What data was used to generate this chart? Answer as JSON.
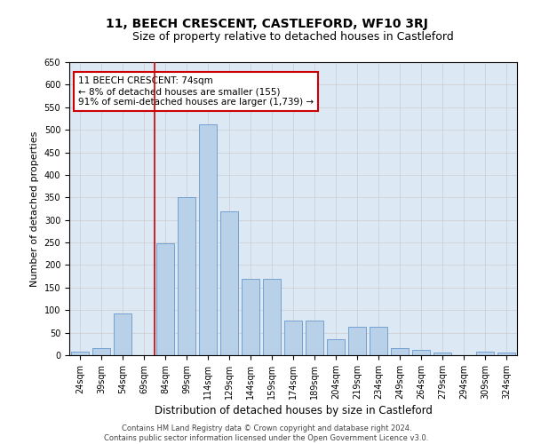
{
  "title": "11, BEECH CRESCENT, CASTLEFORD, WF10 3RJ",
  "subtitle": "Size of property relative to detached houses in Castleford",
  "xlabel": "Distribution of detached houses by size in Castleford",
  "ylabel": "Number of detached properties",
  "bar_labels": [
    "24sqm",
    "39sqm",
    "54sqm",
    "69sqm",
    "84sqm",
    "99sqm",
    "114sqm",
    "129sqm",
    "144sqm",
    "159sqm",
    "174sqm",
    "189sqm",
    "204sqm",
    "219sqm",
    "234sqm",
    "249sqm",
    "264sqm",
    "279sqm",
    "294sqm",
    "309sqm",
    "324sqm"
  ],
  "bar_values": [
    7,
    15,
    93,
    0,
    248,
    350,
    512,
    320,
    170,
    170,
    76,
    76,
    35,
    63,
    63,
    15,
    12,
    5,
    0,
    8,
    5
  ],
  "bar_color": "#b8d0e8",
  "bar_edge_color": "#6699cc",
  "annotation_box_text": "11 BEECH CRESCENT: 74sqm\n← 8% of detached houses are smaller (155)\n91% of semi-detached houses are larger (1,739) →",
  "annotation_box_color": "#ffffff",
  "annotation_box_edge_color": "#cc0000",
  "annotation_text_color": "#000000",
  "vline_color": "#cc0000",
  "ylim": [
    0,
    650
  ],
  "yticks": [
    0,
    50,
    100,
    150,
    200,
    250,
    300,
    350,
    400,
    450,
    500,
    550,
    600,
    650
  ],
  "grid_color": "#cccccc",
  "bg_color": "#dde8f5",
  "footer_line1": "Contains HM Land Registry data © Crown copyright and database right 2024.",
  "footer_line2": "Contains public sector information licensed under the Open Government Licence v3.0.",
  "fig_width": 6.0,
  "fig_height": 5.0,
  "title_fontsize": 10,
  "subtitle_fontsize": 9,
  "xlabel_fontsize": 8.5,
  "ylabel_fontsize": 8,
  "tick_fontsize": 7,
  "annotation_fontsize": 7.5,
  "footer_fontsize": 6
}
